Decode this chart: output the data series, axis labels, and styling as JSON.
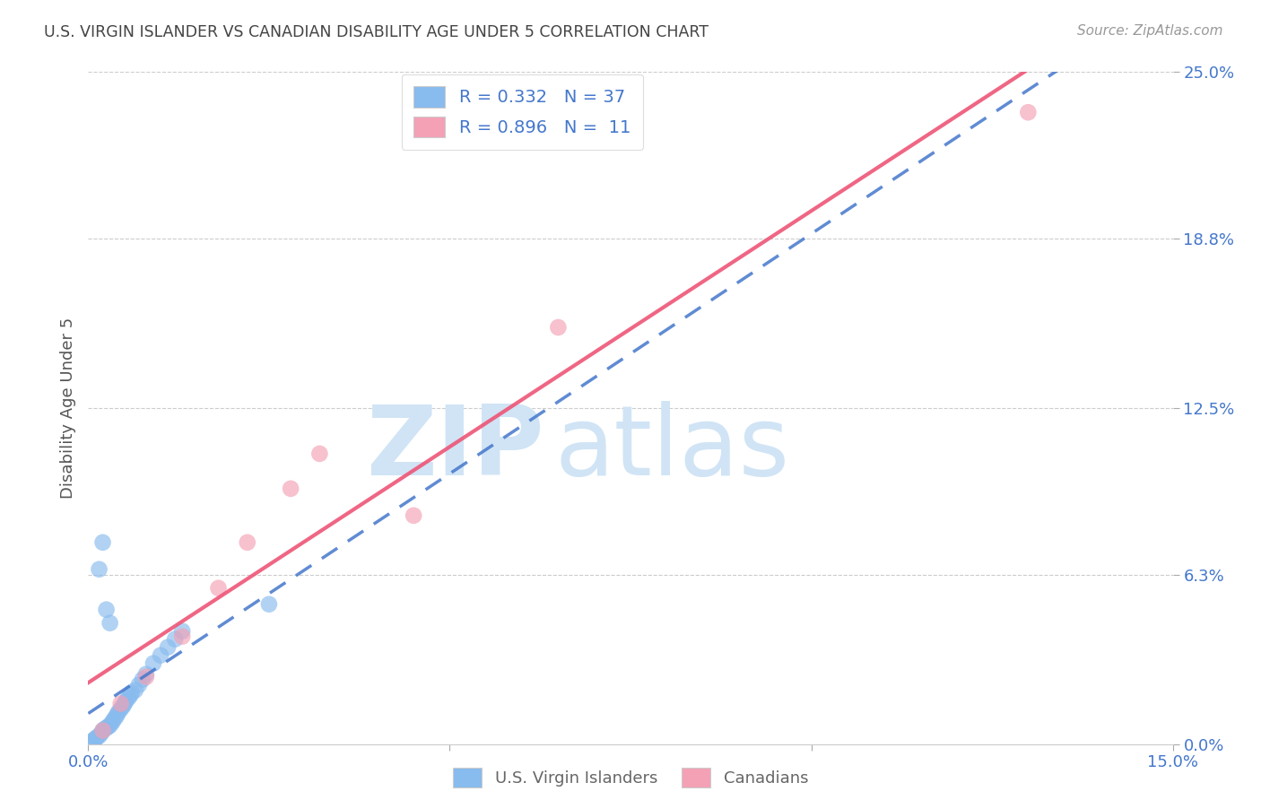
{
  "title": "U.S. VIRGIN ISLANDER VS CANADIAN DISABILITY AGE UNDER 5 CORRELATION CHART",
  "source": "Source: ZipAtlas.com",
  "ylabel_label": "Disability Age Under 5",
  "ylabel_values": [
    0.0,
    6.3,
    12.5,
    18.8,
    25.0
  ],
  "xmin": 0.0,
  "xmax": 15.0,
  "ymin": 0.0,
  "ymax": 25.0,
  "blue_color": "#88BBEE",
  "pink_color": "#F4A0B5",
  "line_blue_color": "#4477CC",
  "line_pink_color": "#EE5577",
  "watermark_zip": "ZIP",
  "watermark_atlas": "atlas",
  "watermark_color": "#D0E4F5",
  "title_color": "#444444",
  "axis_label_color": "#4477CC",
  "grid_color": "#cccccc",
  "us_virgin_islanders_x": [
    0.05,
    0.08,
    0.1,
    0.12,
    0.15,
    0.18,
    0.2,
    0.22,
    0.25,
    0.28,
    0.3,
    0.33,
    0.35,
    0.38,
    0.4,
    0.42,
    0.45,
    0.48,
    0.5,
    0.52,
    0.55,
    0.58,
    0.6,
    0.65,
    0.7,
    0.75,
    0.8,
    0.9,
    1.0,
    1.1,
    1.2,
    1.3,
    0.15,
    0.2,
    0.25,
    0.3,
    2.5
  ],
  "us_virgin_islanders_y": [
    0.1,
    0.15,
    0.2,
    0.25,
    0.3,
    0.4,
    0.5,
    0.55,
    0.6,
    0.65,
    0.7,
    0.8,
    0.9,
    1.0,
    1.1,
    1.2,
    1.3,
    1.4,
    1.5,
    1.6,
    1.7,
    1.8,
    1.9,
    2.0,
    2.2,
    2.4,
    2.6,
    3.0,
    3.3,
    3.6,
    3.9,
    4.2,
    6.5,
    7.5,
    5.0,
    4.5,
    5.2
  ],
  "canadians_x": [
    0.2,
    0.45,
    0.8,
    1.3,
    1.8,
    2.2,
    2.8,
    3.2,
    4.5,
    6.5,
    13.0
  ],
  "canadians_y": [
    0.5,
    1.5,
    2.5,
    4.0,
    5.8,
    7.5,
    9.5,
    10.8,
    8.5,
    15.5,
    23.5
  ]
}
